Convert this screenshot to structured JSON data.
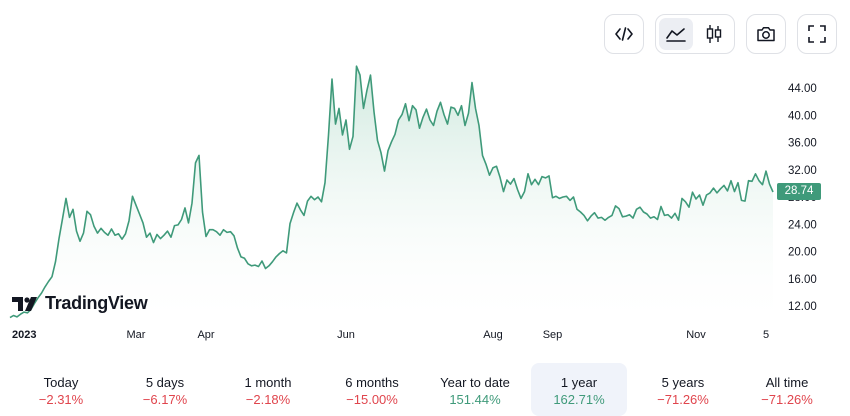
{
  "toolbar": {
    "buttons": [
      {
        "name": "embed-code-icon"
      },
      {
        "name": "area-chart-icon",
        "active": true
      },
      {
        "name": "candlestick-chart-icon"
      },
      {
        "name": "camera-icon"
      },
      {
        "name": "fullscreen-icon"
      }
    ]
  },
  "brand": {
    "name": "TradingView"
  },
  "last_price": "28.74",
  "colors": {
    "line": "#3f9a7a",
    "fill_top": "#c9e6da",
    "negative": "#e0454d",
    "positive": "#3f9a7a"
  },
  "chart_data": {
    "type": "area",
    "ylim": [
      9.5,
      49
    ],
    "y_ticks": [
      "12.00",
      "16.00",
      "20.00",
      "24.00",
      "28.00",
      "32.00",
      "36.00",
      "40.00",
      "44.00"
    ],
    "x_ticks": [
      {
        "label": "2023",
        "index": 0,
        "bold": true
      },
      {
        "label": "Mar",
        "index": 36
      },
      {
        "label": "Apr",
        "index": 56
      },
      {
        "label": "Jun",
        "index": 96
      },
      {
        "label": "Aug",
        "index": 138
      },
      {
        "label": "Sep",
        "index": 155
      },
      {
        "label": "Nov",
        "index": 196
      },
      {
        "label": "5",
        "index": 216
      }
    ],
    "values": [
      10.3,
      10.6,
      10.4,
      10.8,
      11.1,
      11.0,
      11.5,
      12.4,
      13.2,
      13.9,
      14.8,
      15.6,
      16.3,
      18.5,
      21.9,
      24.8,
      27.8,
      25.0,
      26.2,
      23.0,
      21.5,
      22.7,
      25.9,
      25.4,
      23.7,
      22.7,
      23.4,
      22.8,
      22.4,
      23.3,
      22.4,
      22.6,
      21.8,
      22.6,
      24.5,
      28.1,
      26.8,
      25.5,
      24.2,
      22.1,
      22.7,
      21.3,
      22.5,
      21.9,
      22.4,
      23.0,
      22.1,
      23.8,
      23.9,
      24.7,
      26.4,
      24.2,
      27.1,
      33.0,
      34.1,
      25.8,
      22.2,
      23.2,
      23.2,
      22.9,
      22.4,
      23.2,
      22.8,
      22.9,
      22.3,
      20.5,
      19.2,
      19.0,
      18.2,
      17.9,
      18.0,
      17.8,
      18.6,
      17.5,
      17.9,
      18.5,
      19.2,
      19.7,
      20.1,
      19.8,
      24.1,
      25.7,
      27.1,
      26.1,
      25.3,
      27.4,
      28.1,
      27.6,
      28.0,
      27.3,
      30.1,
      37.1,
      45.3,
      38.7,
      41.0,
      37.1,
      39.3,
      35.0,
      36.9,
      47.2,
      45.9,
      41.0,
      43.7,
      45.9,
      40.5,
      36.3,
      34.5,
      31.8,
      34.8,
      36.1,
      37.2,
      39.3,
      40.1,
      41.7,
      39.2,
      41.4,
      40.8,
      38.1,
      39.7,
      40.9,
      39.3,
      38.5,
      40.6,
      41.9,
      40.1,
      38.7,
      41.2,
      41.0,
      40.0,
      41.4,
      38.5,
      40.3,
      44.8,
      41.0,
      38.5,
      34.1,
      32.8,
      31.2,
      32.3,
      32.5,
      30.9,
      28.8,
      30.5,
      29.9,
      30.7,
      29.1,
      27.8,
      28.8,
      31.4,
      29.8,
      30.6,
      29.8,
      31.0,
      30.8,
      31.1,
      27.9,
      28.1,
      27.8,
      28.0,
      28.1,
      27.5,
      28.0,
      26.2,
      25.8,
      25.3,
      24.5,
      25.2,
      25.7,
      24.9,
      25.0,
      24.6,
      25.0,
      25.3,
      26.7,
      26.3,
      25.1,
      25.2,
      25.4,
      24.9,
      26.2,
      26.5,
      25.8,
      25.5,
      24.9,
      25.1,
      24.7,
      26.6,
      25.3,
      25.4,
      24.9,
      25.6,
      24.6,
      27.8,
      27.3,
      26.5,
      28.7,
      27.7,
      28.3,
      26.8,
      28.3,
      28.6,
      29.3,
      28.6,
      29.2,
      29.7,
      28.9,
      30.4,
      28.8,
      30.1,
      27.5,
      27.4,
      30.4,
      30.3,
      31.4,
      30.4,
      29.8,
      31.8,
      29.9,
      28.74
    ]
  },
  "ranges": [
    {
      "label": "Today",
      "change": "−2.31%",
      "sign": "neg"
    },
    {
      "label": "5 days",
      "change": "−6.17%",
      "sign": "neg"
    },
    {
      "label": "1 month",
      "change": "−2.18%",
      "sign": "neg"
    },
    {
      "label": "6 months",
      "change": "−15.00%",
      "sign": "neg"
    },
    {
      "label": "Year to date",
      "change": "151.44%",
      "sign": "pos"
    },
    {
      "label": "1 year",
      "change": "162.71%",
      "sign": "pos",
      "active": true
    },
    {
      "label": "5 years",
      "change": "−71.26%",
      "sign": "neg"
    },
    {
      "label": "All time",
      "change": "−71.26%",
      "sign": "neg"
    }
  ]
}
